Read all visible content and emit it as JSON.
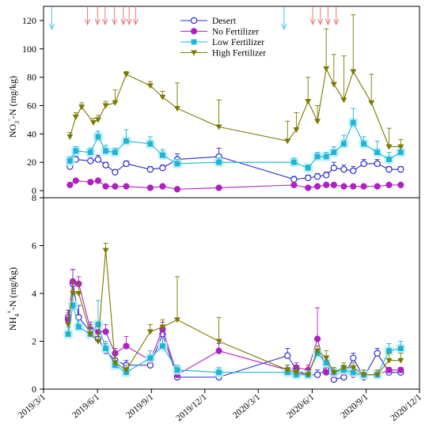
{
  "chart_data": [
    {
      "type": "line",
      "ylabel_main": "NO",
      "ylabel_sub": "3",
      "ylabel_sup": "-",
      "ylabel_tail": "-N (mg/kg)",
      "ylim": [
        0,
        130
      ],
      "yticks": [
        0,
        20,
        40,
        60,
        80,
        100,
        120
      ],
      "grid": false,
      "legend_position": "top-center",
      "legend": [
        "Desert",
        "No Fertilizer",
        "Low Fertilizer",
        "High Fertilizer"
      ],
      "markers": {
        "irrigation_arrows": [
          "2019-03-15",
          "2020-04-14"
        ],
        "fertilization_arrows": [
          "2019-05-15",
          "2019-06-01",
          "2019-06-14",
          "2019-06-30",
          "2019-07-15",
          "2019-07-25",
          "2019-08-05",
          "2020-06-02",
          "2020-06-15",
          "2020-06-28",
          "2020-07-12"
        ]
      },
      "series": [
        {
          "name": "Desert",
          "color": "#2a2ad0",
          "x": [
            "2019-04-15",
            "2019-04-25",
            "2019-05-20",
            "2019-06-02",
            "2019-06-15",
            "2019-07-01",
            "2019-07-20",
            "2019-08-30",
            "2019-09-20",
            "2019-10-15",
            "2019-12-25",
            "2020-05-01",
            "2020-05-25",
            "2020-06-10",
            "2020-06-25",
            "2020-07-08",
            "2020-07-25",
            "2020-08-10",
            "2020-08-28",
            "2020-09-20",
            "2020-10-10",
            "2020-10-30"
          ],
          "y": [
            17,
            22,
            21,
            22,
            18,
            13,
            19,
            15,
            16,
            22,
            24,
            8,
            9,
            10,
            11,
            16,
            15,
            14,
            19,
            19,
            15,
            15
          ],
          "err": [
            2,
            2,
            3,
            3,
            2,
            1,
            2,
            2,
            2,
            4,
            6,
            2,
            2,
            2,
            2,
            4,
            3,
            3,
            3,
            3,
            2,
            2
          ]
        },
        {
          "name": "No Fertilizer",
          "color": "#b020c0",
          "x": [
            "2019-04-15",
            "2019-04-25",
            "2019-05-20",
            "2019-06-02",
            "2019-06-15",
            "2019-07-01",
            "2019-07-20",
            "2019-08-30",
            "2019-09-20",
            "2019-10-15",
            "2019-12-25",
            "2020-05-01",
            "2020-05-25",
            "2020-06-10",
            "2020-06-25",
            "2020-07-08",
            "2020-07-25",
            "2020-08-10",
            "2020-08-28",
            "2020-09-20",
            "2020-10-10",
            "2020-10-30"
          ],
          "y": [
            4,
            7,
            6,
            7,
            3,
            3,
            3,
            2,
            3,
            1,
            2,
            4,
            2,
            3,
            4,
            4,
            3,
            3,
            3,
            3,
            4,
            4
          ],
          "err": [
            1,
            1,
            1,
            1,
            1,
            1,
            1,
            1,
            1,
            0.5,
            1,
            1,
            1,
            1,
            1,
            1,
            1,
            1,
            1,
            1,
            1,
            1
          ]
        },
        {
          "name": "Low Fertilizer",
          "color": "#1fb4d4",
          "x": [
            "2019-04-15",
            "2019-04-25",
            "2019-05-20",
            "2019-06-02",
            "2019-06-15",
            "2019-07-01",
            "2019-07-20",
            "2019-08-30",
            "2019-09-20",
            "2019-10-15",
            "2019-12-25",
            "2020-05-01",
            "2020-05-25",
            "2020-06-10",
            "2020-06-25",
            "2020-07-08",
            "2020-07-25",
            "2020-08-10",
            "2020-08-28",
            "2020-09-20",
            "2020-10-10",
            "2020-10-30"
          ],
          "y": [
            21,
            28,
            27,
            38,
            28,
            27,
            35,
            33,
            25,
            19,
            20,
            20,
            16,
            24,
            24,
            27,
            33,
            48,
            33,
            27,
            22,
            27
          ],
          "err": [
            3,
            3,
            3,
            4,
            4,
            3,
            8,
            5,
            4,
            3,
            3,
            3,
            2,
            3,
            3,
            4,
            6,
            10,
            5,
            8,
            5,
            4
          ]
        },
        {
          "name": "High Fertilizer",
          "color": "#7a7a00",
          "x": [
            "2019-04-15",
            "2019-04-25",
            "2019-05-05",
            "2019-05-25",
            "2019-06-02",
            "2019-06-15",
            "2019-07-01",
            "2019-07-20",
            "2019-08-30",
            "2019-09-20",
            "2019-10-15",
            "2019-12-25",
            "2020-04-20",
            "2020-05-05",
            "2020-05-25",
            "2020-06-10",
            "2020-06-25",
            "2020-07-08",
            "2020-07-25",
            "2020-08-10",
            "2020-09-10",
            "2020-10-10",
            "2020-10-30"
          ],
          "y": [
            38,
            52,
            59,
            48,
            50,
            60,
            62,
            82,
            74,
            66,
            58,
            45,
            35,
            43,
            63,
            49,
            86,
            75,
            64,
            84,
            62,
            31,
            31
          ],
          "err": [
            3,
            3,
            3,
            3,
            3,
            3,
            9,
            2,
            3,
            4,
            18,
            19,
            14,
            12,
            17,
            11,
            28,
            21,
            31,
            40,
            20,
            13,
            5
          ]
        }
      ]
    },
    {
      "type": "line",
      "ylabel_main": "NH",
      "ylabel_sub": "4",
      "ylabel_sup": "+",
      "ylabel_tail": "-N (mg/kg)",
      "ylim": [
        0,
        8
      ],
      "yticks": [
        0,
        2,
        4,
        6,
        8
      ],
      "xlim": [
        "2019-03-01",
        "2020-12-01"
      ],
      "xticks": [
        "2019/3/1",
        "2019/6/1",
        "2019/9/1",
        "2019/12/1",
        "2020/3/1",
        "2020/6/1",
        "2020/9/1",
        "2020/12/1"
      ],
      "grid": false,
      "series": [
        {
          "name": "Desert",
          "color": "#2a2ad0",
          "x": [
            "2019-04-12",
            "2019-04-20",
            "2019-04-30",
            "2019-05-20",
            "2019-06-02",
            "2019-06-15",
            "2019-07-01",
            "2019-07-20",
            "2019-08-30",
            "2019-09-20",
            "2019-10-15",
            "2019-12-25",
            "2020-04-20",
            "2020-05-05",
            "2020-05-25",
            "2020-06-10",
            "2020-06-25",
            "2020-07-08",
            "2020-07-25",
            "2020-08-10",
            "2020-08-28",
            "2020-09-20",
            "2020-10-10",
            "2020-10-30"
          ],
          "y": [
            3.0,
            4.4,
            3.0,
            2.4,
            2.1,
            1.6,
            1.2,
            1.0,
            1.0,
            2.3,
            0.5,
            0.5,
            1.4,
            0.8,
            0.6,
            0.6,
            0.8,
            0.4,
            0.5,
            1.3,
            0.5,
            1.5,
            0.7,
            0.7
          ],
          "err": [
            0.3,
            0.6,
            0.5,
            0.3,
            0.3,
            0.3,
            0.2,
            0.2,
            0.2,
            0.3,
            0.1,
            0.1,
            0.3,
            0.2,
            0.2,
            0.2,
            0.2,
            0.1,
            0.1,
            0.2,
            0.1,
            0.2,
            0.1,
            0.1
          ]
        },
        {
          "name": "No Fertilizer",
          "color": "#b020c0",
          "x": [
            "2019-04-12",
            "2019-04-20",
            "2019-04-30",
            "2019-05-20",
            "2019-06-02",
            "2019-06-15",
            "2019-07-01",
            "2019-07-20",
            "2019-08-30",
            "2019-09-20",
            "2019-10-15",
            "2019-12-25",
            "2020-04-20",
            "2020-05-05",
            "2020-05-25",
            "2020-06-10",
            "2020-06-25",
            "2020-07-08",
            "2020-07-25",
            "2020-08-10",
            "2020-08-28",
            "2020-09-20",
            "2020-10-10",
            "2020-10-30"
          ],
          "y": [
            2.9,
            4.5,
            4.4,
            2.5,
            2.4,
            2.4,
            1.5,
            1.8,
            1.2,
            2.5,
            0.6,
            1.6,
            0.8,
            0.9,
            0.8,
            2.1,
            0.7,
            0.6,
            0.7,
            0.6,
            0.6,
            0.6,
            0.8,
            0.8
          ],
          "err": [
            0.3,
            0.5,
            0.3,
            0.3,
            0.3,
            0.3,
            0.2,
            0.4,
            0.2,
            0.3,
            0.1,
            0.3,
            0.2,
            0.2,
            0.2,
            1.3,
            0.2,
            0.1,
            0.1,
            0.1,
            0.1,
            0.1,
            0.1,
            0.1
          ]
        },
        {
          "name": "Low Fertilizer",
          "color": "#1fb4d4",
          "x": [
            "2019-04-12",
            "2019-04-20",
            "2019-04-30",
            "2019-05-20",
            "2019-06-02",
            "2019-06-15",
            "2019-07-01",
            "2019-07-20",
            "2019-08-30",
            "2019-09-20",
            "2019-10-15",
            "2019-12-25",
            "2020-04-20",
            "2020-05-05",
            "2020-05-25",
            "2020-06-10",
            "2020-06-25",
            "2020-07-08",
            "2020-07-25",
            "2020-08-10",
            "2020-08-28",
            "2020-09-20",
            "2020-10-10",
            "2020-10-30"
          ],
          "y": [
            2.3,
            3.5,
            2.6,
            2.3,
            2.7,
            1.7,
            1.0,
            0.7,
            1.3,
            1.8,
            0.8,
            0.7,
            0.7,
            0.6,
            0.6,
            1.5,
            1.1,
            0.7,
            0.8,
            0.7,
            0.6,
            0.6,
            1.6,
            1.7
          ],
          "err": [
            0.3,
            0.4,
            0.3,
            0.3,
            1.0,
            0.3,
            0.2,
            0.2,
            0.3,
            0.3,
            0.2,
            0.2,
            0.2,
            0.2,
            0.2,
            0.3,
            0.3,
            0.2,
            0.2,
            0.2,
            0.2,
            0.2,
            0.3,
            0.3
          ]
        },
        {
          "name": "High Fertilizer",
          "color": "#7a7a00",
          "x": [
            "2019-04-12",
            "2019-04-20",
            "2019-04-30",
            "2019-05-20",
            "2019-06-02",
            "2019-06-15",
            "2019-07-01",
            "2019-07-20",
            "2019-08-30",
            "2019-09-20",
            "2019-10-15",
            "2019-12-25",
            "2020-04-20",
            "2020-05-05",
            "2020-05-25",
            "2020-06-10",
            "2020-06-25",
            "2020-07-08",
            "2020-07-25",
            "2020-08-10",
            "2020-08-28",
            "2020-09-20",
            "2020-10-10",
            "2020-10-30"
          ],
          "y": [
            2.7,
            4.0,
            4.0,
            2.3,
            2.0,
            5.8,
            1.1,
            0.8,
            2.4,
            2.6,
            2.9,
            2.0,
            0.8,
            0.7,
            0.6,
            1.6,
            1.3,
            0.7,
            0.9,
            0.9,
            0.6,
            0.6,
            1.2,
            1.2
          ],
          "err": [
            0.3,
            0.5,
            0.4,
            0.3,
            0.3,
            0.3,
            0.2,
            0.2,
            0.3,
            0.3,
            1.8,
            1.0,
            0.2,
            0.2,
            0.2,
            0.2,
            0.3,
            0.2,
            0.2,
            0.2,
            0.2,
            0.2,
            0.3,
            0.3
          ]
        }
      ]
    }
  ]
}
